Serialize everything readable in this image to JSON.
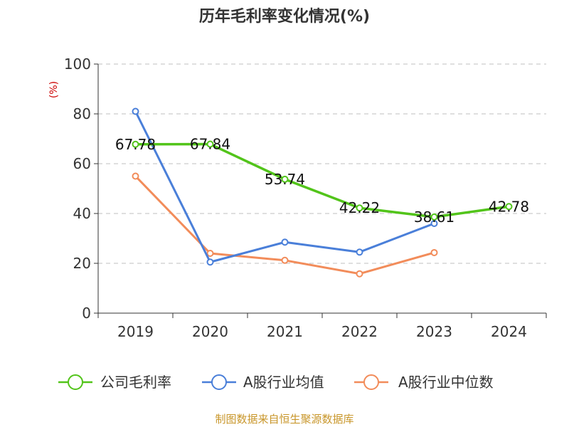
{
  "chart_data": {
    "type": "line",
    "title": "历年毛利率变化情况(%)",
    "ylabel": "(%)",
    "categories": [
      "2019",
      "2020",
      "2021",
      "2022",
      "2023",
      "2024"
    ],
    "ylim": [
      0,
      100
    ],
    "yticks": [
      "0",
      "20",
      "40",
      "60",
      "80",
      "100"
    ],
    "grid": true,
    "legend_position": "bottom",
    "series": [
      {
        "name": "公司毛利率",
        "color": "#52c41a",
        "values": [
          67.78,
          67.84,
          53.74,
          42.22,
          38.61,
          42.78
        ],
        "labels": [
          "67.78",
          "67.84",
          "53.74",
          "42.22",
          "38.61",
          "42.78"
        ]
      },
      {
        "name": "A股行业均值",
        "color": "#4a7fd9",
        "values": [
          81.0,
          20.5,
          28.5,
          24.5,
          36.0,
          null
        ]
      },
      {
        "name": "A股行业中位数",
        "color": "#f28c5a",
        "values": [
          55.0,
          24.0,
          21.2,
          15.8,
          24.3,
          null
        ]
      }
    ]
  },
  "source": "制图数据来自恒生聚源数据库"
}
